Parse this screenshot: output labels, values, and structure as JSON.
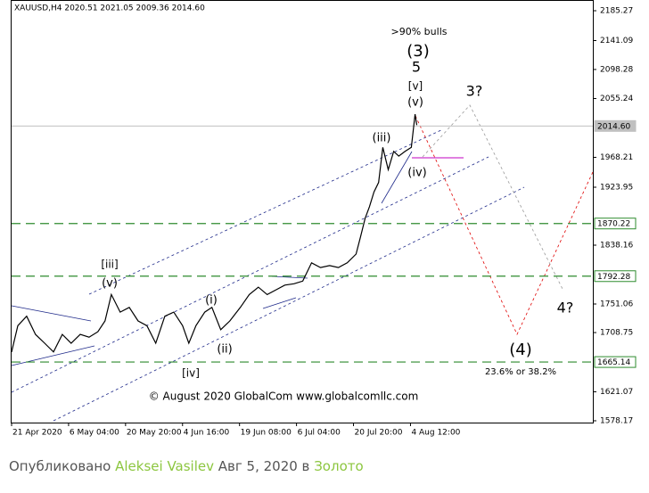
{
  "chart_data": {
    "type": "line",
    "header": "XAUUSD,H4  2020.51 2021.05 2009.36 2014.60",
    "watermark": "© August 2020 GlobalCom www.globalcomllc.com",
    "series": [
      {
        "name": "XAUUSD",
        "color": "#000000",
        "x": [
          0,
          2.2,
          5.3,
          8.4,
          11.6,
          14.7,
          17.8,
          20.9,
          24.1,
          27.2,
          30.3,
          32.8,
          35,
          38.1,
          41.3,
          44.4,
          47.5,
          50.6,
          53.8,
          56.9,
          60,
          62.2,
          64.7,
          67.8,
          70.3,
          73.4,
          76.6,
          80.3,
          83.4,
          86.6,
          89.7,
          92.8,
          95.9,
          99.1,
          102.2,
          105.3,
          108.4,
          111.6,
          114.7,
          117.8,
          120.9,
          122.5,
          124.1,
          125.6,
          127.2,
          128.8,
          130.3,
          132.2,
          134.1,
          135.9,
          138.1,
          140.3,
          141.6,
          142.2
        ],
        "values": [
          1680,
          1719,
          1733,
          1706,
          1693,
          1680,
          1706,
          1693,
          1706,
          1702,
          1710,
          1726,
          1765,
          1739,
          1746,
          1726,
          1719,
          1693,
          1733,
          1739,
          1719,
          1693,
          1719,
          1739,
          1746,
          1713,
          1726,
          1746,
          1765,
          1776,
          1765,
          1772,
          1779,
          1781,
          1785,
          1812,
          1805,
          1808,
          1805,
          1812,
          1825,
          1851,
          1878,
          1895,
          1917,
          1931,
          1983,
          1950,
          1977,
          1970,
          1977,
          1983,
          2032,
          2016
        ]
      }
    ],
    "xlim": [
      0,
      204
    ],
    "xticks": [
      {
        "value": 0,
        "label": "21 Apr 2020"
      },
      {
        "value": 20,
        "label": "6 May 04:00"
      },
      {
        "value": 40,
        "label": "20 May 20:00"
      },
      {
        "value": 60,
        "label": "4 Jun 16:00"
      },
      {
        "value": 80,
        "label": "19 Jun 08:00"
      },
      {
        "value": 100,
        "label": "6 Jul 04:00"
      },
      {
        "value": 120,
        "label": "20 Jul 20:00"
      },
      {
        "value": 140,
        "label": "4 Aug 12:00"
      }
    ],
    "ylim": [
      1575.5,
      2198.5
    ],
    "yticks": [
      2185.27,
      2141.09,
      2098.28,
      2055.24,
      1968.21,
      1923.95,
      1838.16,
      1751.06,
      1708.75,
      1621.07,
      1578.17
    ],
    "levels": [
      {
        "value": 2014.6,
        "label": "2014.60",
        "color": "#c0c0c0"
      },
      {
        "value": 1870.22,
        "color": "#2e8b2e"
      },
      {
        "value": 1792.28,
        "color": "#2e8b2e"
      },
      {
        "value": 1665.14,
        "color": "#2e8b2e"
      }
    ],
    "annotations": [
      ">90% bulls",
      "(3)",
      "5",
      "[v]",
      "(v)",
      "3?",
      "(iii)",
      "(iv)",
      "[iii]",
      "(v)",
      "(i)",
      "(ii)",
      "[iv]",
      "4?",
      "(4)",
      "23.6% or 38.2%"
    ]
  },
  "footer": {
    "prefix": "Опубликовано",
    "author": "Aleksei Vasilev",
    "date": "Авг 5, 2020 в",
    "category": "Золото"
  }
}
